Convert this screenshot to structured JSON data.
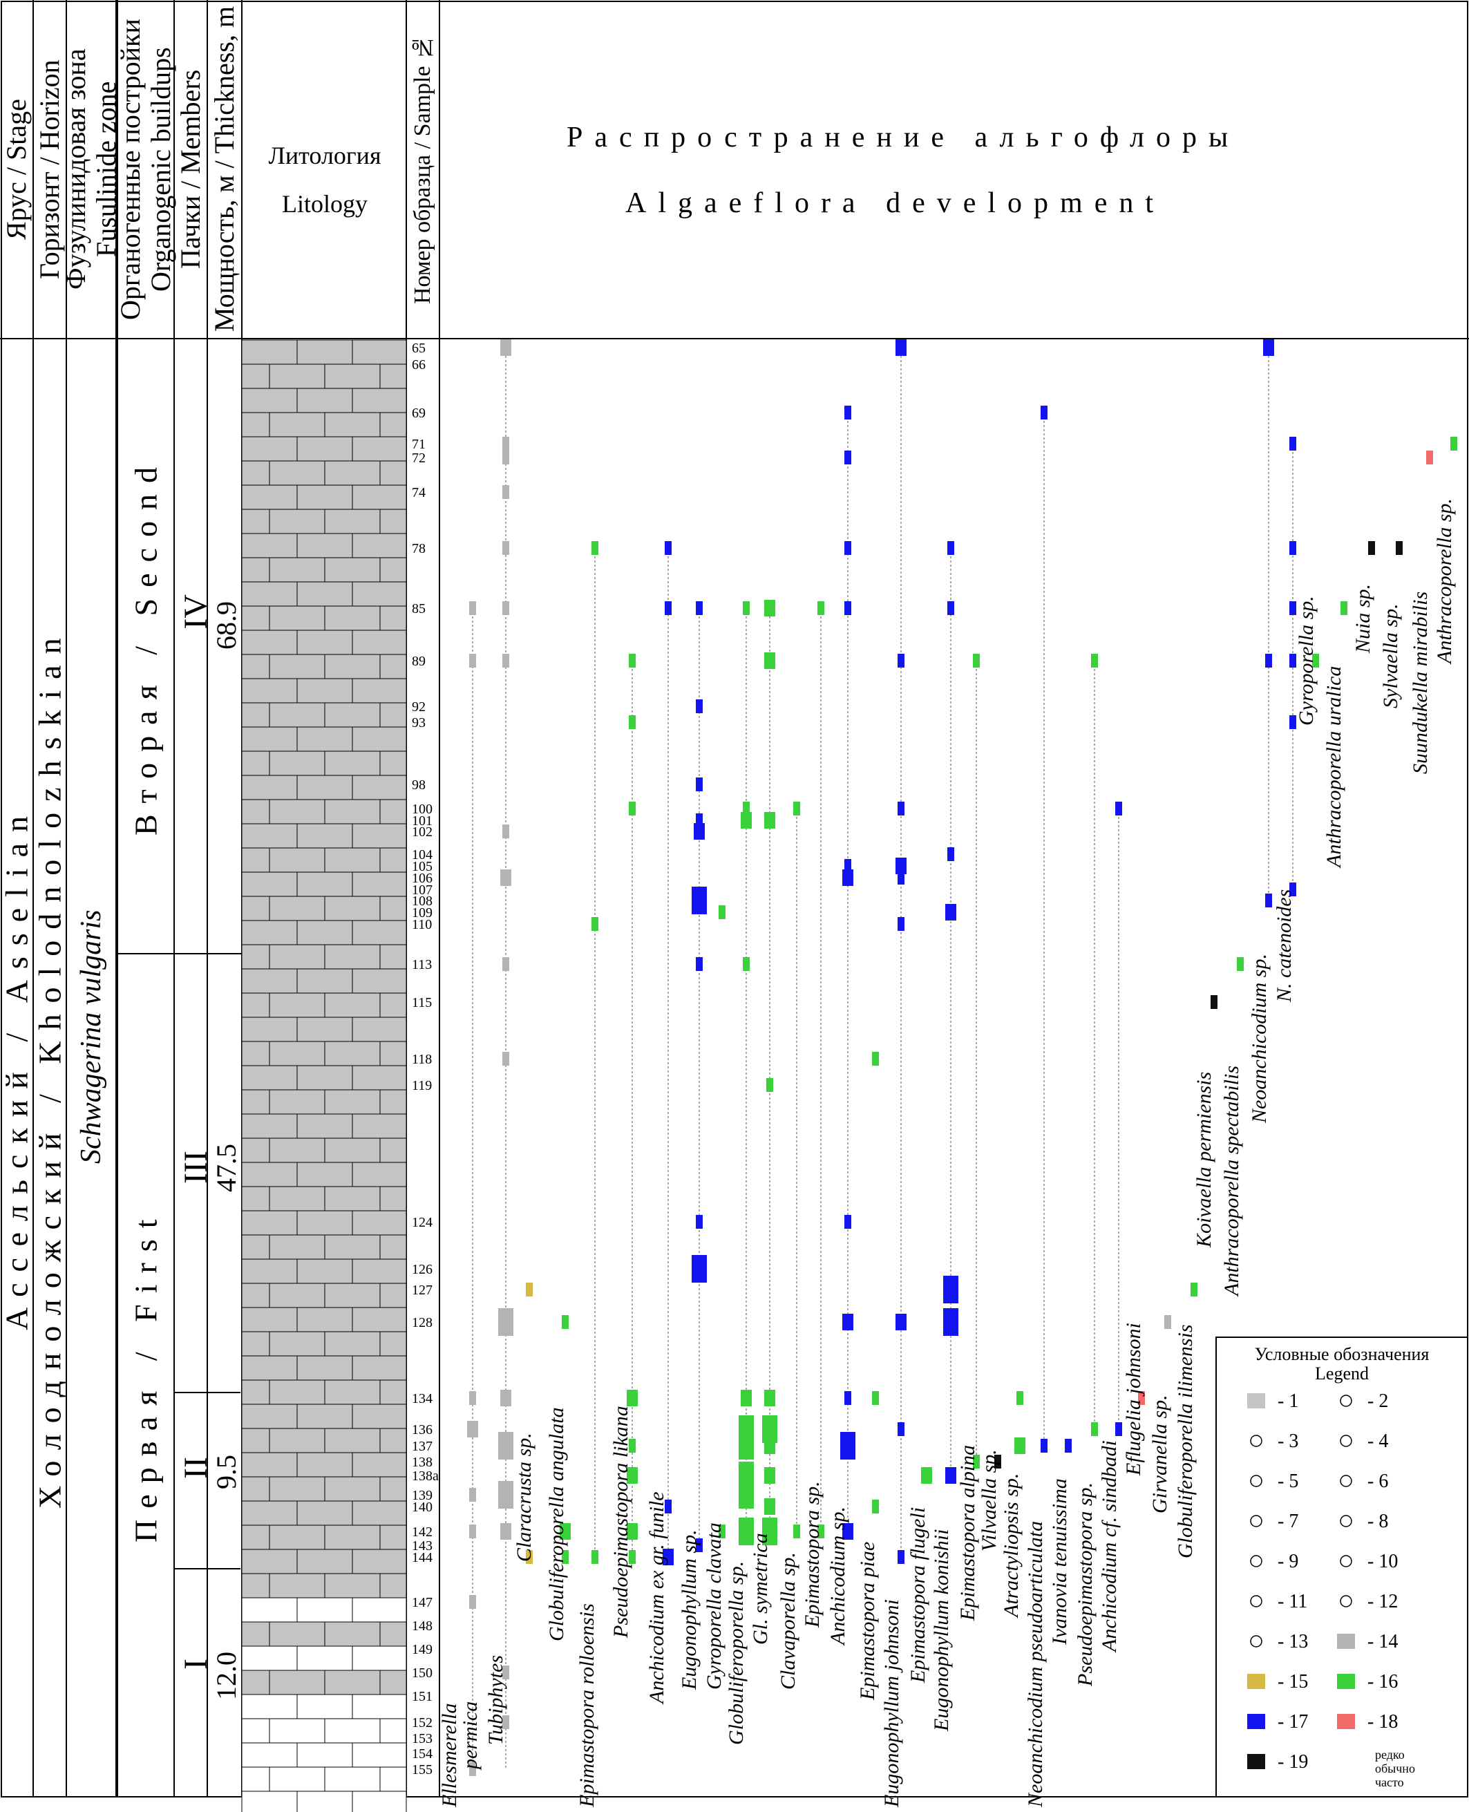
{
  "headers": {
    "stage": "Ярус / Stage",
    "horizon": "Горизонт / Horizon",
    "zone_ru": "Фузулинидовая зона",
    "zone_en": "Fusulinide zone",
    "buildups_ru": "Органогенные постройки",
    "buildups_en": "Organogenic buildups",
    "members": "Пачки / Members",
    "thickness": "Мощность, м / Thickness, m",
    "lithology_ru": "Литология",
    "lithology_en": "Litology",
    "sample": "Номер образца / Sample №",
    "title_ru": "Распространение альгофлоры",
    "title_en": "Algaeflora development"
  },
  "column_values": {
    "stage": "Ассельский / Asselian",
    "horizon": "Холодноложский / Kholodnolozhskian",
    "zone": "Schwagerina vulgaris",
    "buildup_second": "Вторая / Second",
    "buildup_first": "Первая / First"
  },
  "members": [
    {
      "name": "IV",
      "thickness": "68.9"
    },
    {
      "name": "III",
      "thickness": "47.5"
    },
    {
      "name": "II",
      "thickness": "9.5"
    },
    {
      "name": "I",
      "thickness": "12.0"
    }
  ],
  "legend": {
    "title_ru": "Условные обозначения",
    "title_en": "Legend",
    "items": [
      "- 1",
      "- 2",
      "- 3",
      "- 4",
      "- 5",
      "- 6",
      "- 7",
      "- 8",
      "- 9",
      "- 10",
      "- 11",
      "- 12",
      "- 13",
      "- 14",
      "- 15",
      "- 16",
      "- 17",
      "- 18",
      "- 19"
    ],
    "abundance": [
      "редко",
      "обычно",
      "часто"
    ]
  },
  "colors": {
    "grey": "#b3b3b3",
    "yellow": "#d4b843",
    "green": "#3ad13a",
    "blue": "#1414f0",
    "red": "#f26a6a",
    "black": "#111111",
    "rock": "#c4c4c4"
  },
  "chart_data": {
    "type": "range-chart",
    "samples": [
      "65",
      "66",
      "69",
      "71",
      "72",
      "74",
      "78",
      "85",
      "89",
      "92",
      "93",
      "98",
      "100",
      "101",
      "102",
      "104",
      "105",
      "106",
      "107",
      "108",
      "109",
      "110",
      "113",
      "115",
      "118",
      "119",
      "124",
      "126",
      "127",
      "128",
      "134",
      "136",
      "137",
      "138",
      "138a",
      "139",
      "140",
      "142",
      "143",
      "144",
      "147",
      "148",
      "149",
      "150",
      "151",
      "152",
      "153",
      "154",
      "155"
    ],
    "taxa": [
      {
        "name": "Ellesmerella",
        "color": "grey",
        "ranges": [
          [
            "85",
            "155"
          ]
        ],
        "occurrences": [
          [
            "85",
            1
          ],
          [
            "89",
            1
          ],
          [
            "134",
            1
          ],
          [
            "136",
            2
          ],
          [
            "139",
            1
          ],
          [
            "142",
            1
          ],
          [
            "147",
            1
          ],
          [
            "155",
            1
          ]
        ]
      },
      {
        "name": "permica",
        "color": "grey",
        "ranges": [],
        "occurrences": []
      },
      {
        "name": "Tubiphytes",
        "color": "grey",
        "ranges": [
          [
            "65",
            "155"
          ]
        ],
        "occurrences": [
          [
            "65",
            2
          ],
          [
            "71",
            1
          ],
          [
            "72",
            1
          ],
          [
            "74",
            1
          ],
          [
            "78",
            1
          ],
          [
            "85",
            1
          ],
          [
            "89",
            1
          ],
          [
            "102",
            1
          ],
          [
            "106",
            2
          ],
          [
            "113",
            1
          ],
          [
            "118",
            1
          ],
          [
            "128",
            3
          ],
          [
            "134",
            2
          ],
          [
            "137",
            3
          ],
          [
            "139",
            3
          ],
          [
            "142",
            2
          ],
          [
            "150",
            1
          ],
          [
            "152",
            1
          ]
        ]
      },
      {
        "name": "Claracrusta sp.",
        "color": "yellow",
        "ranges": [],
        "occurrences": [
          [
            "127",
            1
          ],
          [
            "144",
            1
          ]
        ]
      },
      {
        "name": "Globuliferoporella angulata",
        "color": "green",
        "ranges": [],
        "occurrences": [
          [
            "128",
            1
          ],
          [
            "142",
            2
          ],
          [
            "144",
            1
          ]
        ]
      },
      {
        "name": "Epimastopora rolloensis",
        "color": "green",
        "ranges": [
          [
            "78",
            "144"
          ]
        ],
        "occurrences": [
          [
            "78",
            1
          ],
          [
            "110",
            1
          ],
          [
            "144",
            1
          ]
        ]
      },
      {
        "name": "Pseudoepimastopora likana",
        "color": "green",
        "ranges": [
          [
            "89",
            "144"
          ]
        ],
        "occurrences": [
          [
            "89",
            1
          ],
          [
            "93",
            1
          ],
          [
            "100",
            1
          ],
          [
            "134",
            2
          ],
          [
            "137",
            1
          ],
          [
            "138a",
            2
          ],
          [
            "142",
            2
          ],
          [
            "144",
            1
          ]
        ]
      },
      {
        "name": "Anchicodium ex gr. funile",
        "color": "blue",
        "ranges": [
          [
            "78",
            "144"
          ]
        ],
        "occurrences": [
          [
            "78",
            1
          ],
          [
            "85",
            1
          ],
          [
            "140",
            1
          ],
          [
            "144",
            2
          ]
        ]
      },
      {
        "name": "Eugonophyllum sp.",
        "color": "blue",
        "ranges": [
          [
            "85",
            "143"
          ]
        ],
        "occurrences": [
          [
            "85",
            1
          ],
          [
            "92",
            1
          ],
          [
            "98",
            1
          ],
          [
            "101",
            1
          ],
          [
            "102",
            2
          ],
          [
            "108",
            3
          ],
          [
            "113",
            1
          ],
          [
            "124",
            1
          ],
          [
            "126",
            3
          ],
          [
            "143",
            1
          ]
        ]
      },
      {
        "name": "Gyroporella clavata",
        "color": "green",
        "ranges": [],
        "occurrences": [
          [
            "109",
            1
          ],
          [
            "142",
            1
          ]
        ]
      },
      {
        "name": "Globuliferoporella sp.",
        "color": "green",
        "ranges": [
          [
            "85",
            "142"
          ]
        ],
        "occurrences": [
          [
            "85",
            1
          ],
          [
            "100",
            1
          ],
          [
            "101",
            2
          ],
          [
            "113",
            1
          ],
          [
            "134",
            2
          ],
          [
            "136",
            3
          ],
          [
            "137",
            3
          ],
          [
            "138a",
            3
          ],
          [
            "139",
            3
          ],
          [
            "142",
            3
          ]
        ]
      },
      {
        "name": "Gl. symetrica",
        "color": "green",
        "ranges": [
          [
            "85",
            "142"
          ]
        ],
        "occurrences": [
          [
            "85",
            2
          ],
          [
            "89",
            2
          ],
          [
            "101",
            2
          ],
          [
            "119",
            1
          ],
          [
            "134",
            2
          ],
          [
            "136",
            3
          ],
          [
            "137",
            2
          ],
          [
            "138a",
            2
          ],
          [
            "140",
            2
          ],
          [
            "142",
            3
          ]
        ]
      },
      {
        "name": "Clavaporella sp.",
        "color": "green",
        "ranges": [
          [
            "100",
            "142"
          ]
        ],
        "occurrences": [
          [
            "100",
            1
          ],
          [
            "142",
            1
          ]
        ]
      },
      {
        "name": "Epimastopora sp.",
        "color": "green",
        "ranges": [
          [
            "85",
            "142"
          ]
        ],
        "occurrences": [
          [
            "85",
            1
          ],
          [
            "142",
            1
          ]
        ]
      },
      {
        "name": "Anchicodium sp.",
        "color": "blue",
        "ranges": [
          [
            "69",
            "142"
          ]
        ],
        "occurrences": [
          [
            "69",
            1
          ],
          [
            "72",
            1
          ],
          [
            "78",
            1
          ],
          [
            "85",
            1
          ],
          [
            "105",
            1
          ],
          [
            "106",
            2
          ],
          [
            "124",
            1
          ],
          [
            "128",
            2
          ],
          [
            "134",
            1
          ],
          [
            "137",
            3
          ],
          [
            "142",
            2
          ]
        ]
      },
      {
        "name": "Epimastopora piae",
        "color": "green",
        "ranges": [],
        "occurrences": [
          [
            "118",
            1
          ],
          [
            "134",
            1
          ],
          [
            "140",
            1
          ]
        ]
      },
      {
        "name": "Eugonophyllum johnsoni",
        "color": "blue",
        "ranges": [
          [
            "65",
            "144"
          ]
        ],
        "occurrences": [
          [
            "65",
            2
          ],
          [
            "89",
            1
          ],
          [
            "100",
            1
          ],
          [
            "105",
            2
          ],
          [
            "106",
            1
          ],
          [
            "110",
            1
          ],
          [
            "128",
            2
          ],
          [
            "136",
            1
          ],
          [
            "144",
            1
          ]
        ]
      },
      {
        "name": "Epimastopora flugeli",
        "color": "green",
        "ranges": [],
        "occurrences": [
          [
            "138a",
            2
          ]
        ]
      },
      {
        "name": "Eugonophyllum konishii",
        "color": "blue",
        "ranges": [
          [
            "78",
            "138a"
          ]
        ],
        "occurrences": [
          [
            "78",
            1
          ],
          [
            "85",
            1
          ],
          [
            "104",
            1
          ],
          [
            "109",
            2
          ],
          [
            "127",
            3
          ],
          [
            "128",
            3
          ],
          [
            "138a",
            2
          ]
        ]
      },
      {
        "name": "Epimastopora alpina",
        "color": "green",
        "ranges": [
          [
            "89",
            "138"
          ]
        ],
        "occurrences": [
          [
            "89",
            1
          ],
          [
            "138",
            1
          ]
        ]
      },
      {
        "name": "Vilvaella sp.",
        "color": "black",
        "ranges": [],
        "occurrences": [
          [
            "138",
            1
          ]
        ]
      },
      {
        "name": "Atractyliopsis sp.",
        "color": "green",
        "ranges": [],
        "occurrences": [
          [
            "134",
            1
          ],
          [
            "137",
            2
          ]
        ]
      },
      {
        "name": "Neoanchicodium pseudoarticulata",
        "color": "blue",
        "ranges": [
          [
            "69",
            "137"
          ]
        ],
        "occurrences": [
          [
            "69",
            1
          ],
          [
            "137",
            1
          ]
        ]
      },
      {
        "name": "Ivanovia tenuissima",
        "color": "blue",
        "ranges": [],
        "occurrences": [
          [
            "137",
            1
          ]
        ]
      },
      {
        "name": "Pseudoepimastopora sp.",
        "color": "green",
        "ranges": [
          [
            "89",
            "136"
          ]
        ],
        "occurrences": [
          [
            "89",
            1
          ],
          [
            "136",
            1
          ]
        ]
      },
      {
        "name": "Anchicodium cf. sindbadi",
        "color": "blue",
        "ranges": [
          [
            "100",
            "136"
          ]
        ],
        "occurrences": [
          [
            "100",
            1
          ],
          [
            "136",
            1
          ]
        ]
      },
      {
        "name": "Eflugelia johnsoni",
        "color": "red",
        "ranges": [],
        "occurrences": [
          [
            "134",
            1
          ]
        ]
      },
      {
        "name": "Girvanella sp.",
        "color": "grey",
        "ranges": [],
        "occurrences": [
          [
            "128",
            1
          ]
        ]
      },
      {
        "name": "Globuliferoporella ilimensis",
        "color": "green",
        "ranges": [],
        "occurrences": [
          [
            "127",
            1
          ]
        ]
      },
      {
        "name": "Koivaella permiensis",
        "color": "black",
        "ranges": [],
        "occurrences": [
          [
            "115",
            1
          ]
        ]
      },
      {
        "name": "Anthracoporella spectabilis",
        "color": "green",
        "ranges": [],
        "occurrences": [
          [
            "113",
            1
          ]
        ]
      },
      {
        "name": "Neoanchicodium sp.",
        "color": "blue",
        "ranges": [
          [
            "65",
            "108"
          ]
        ],
        "occurrences": [
          [
            "65",
            2
          ],
          [
            "89",
            1
          ],
          [
            "108",
            1
          ]
        ]
      },
      {
        "name": "N. catenoides",
        "color": "blue",
        "ranges": [
          [
            "71",
            "107"
          ]
        ],
        "occurrences": [
          [
            "71",
            1
          ],
          [
            "78",
            1
          ],
          [
            "85",
            1
          ],
          [
            "89",
            1
          ],
          [
            "93",
            1
          ],
          [
            "107",
            1
          ]
        ]
      },
      {
        "name": "Gyroporella sp.",
        "color": "green",
        "ranges": [],
        "occurrences": [
          [
            "89",
            1
          ]
        ]
      },
      {
        "name": "Anthracoporella uralica",
        "color": "green",
        "ranges": [],
        "occurrences": [
          [
            "85",
            1
          ]
        ]
      },
      {
        "name": "Nuia sp.",
        "color": "black",
        "ranges": [],
        "occurrences": [
          [
            "78",
            1
          ]
        ]
      },
      {
        "name": "Sylvaella sp.",
        "color": "black",
        "ranges": [],
        "occurrences": [
          [
            "78",
            1
          ]
        ]
      },
      {
        "name": "Suundukella mirabilis",
        "color": "red",
        "ranges": [],
        "occurrences": [
          [
            "72",
            1
          ]
        ]
      },
      {
        "name": "Anthracoporella sp.",
        "color": "green",
        "ranges": [],
        "occurrences": [
          [
            "71",
            1
          ]
        ]
      }
    ]
  }
}
